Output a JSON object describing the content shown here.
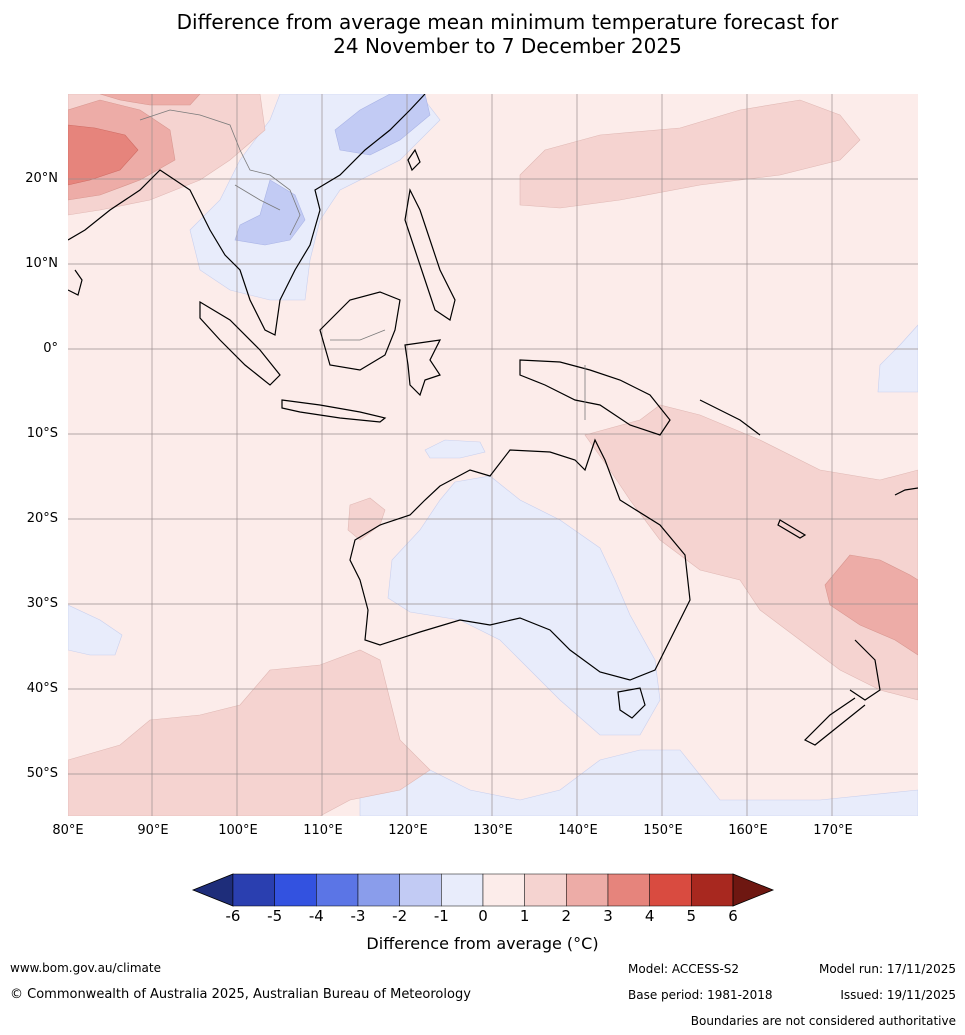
{
  "title": {
    "line1": "Difference from average mean minimum temperature forecast for",
    "line2": "24 November to 7 December 2025"
  },
  "axes": {
    "lat_labels": [
      "20°N",
      "10°N",
      "0°",
      "10°S",
      "20°S",
      "30°S",
      "40°S",
      "50°S"
    ],
    "lon_labels": [
      "80°E",
      "90°E",
      "100°E",
      "110°E",
      "120°E",
      "130°E",
      "140°E",
      "150°E",
      "160°E",
      "170°E"
    ]
  },
  "legend": {
    "ticks": [
      "-6",
      "-5",
      "-4",
      "-3",
      "-2",
      "-1",
      "0",
      "1",
      "2",
      "3",
      "4",
      "5",
      "6"
    ],
    "colors": [
      "#1e2d7a",
      "#2a3fb0",
      "#3352e0",
      "#5b75e6",
      "#8a9deb",
      "#c2cbf4",
      "#e8ecfb",
      "#fcecea",
      "#f5d3d0",
      "#edaca7",
      "#e6847c",
      "#d94b40",
      "#a8281f",
      "#6e1711"
    ],
    "label": "Difference from average (°C)"
  },
  "footer": {
    "website": "www.bom.gov.au/climate",
    "copyright": "© Commonwealth of Australia 2025, Australian Bureau of Meteorology",
    "model": "Model: ACCESS-S2",
    "base_period": "Base period: 1981-2018",
    "model_run": "Model run: 17/11/2025",
    "issued": "Issued: 19/11/2025",
    "disclaimer": "Boundaries are not considered authoritative"
  }
}
